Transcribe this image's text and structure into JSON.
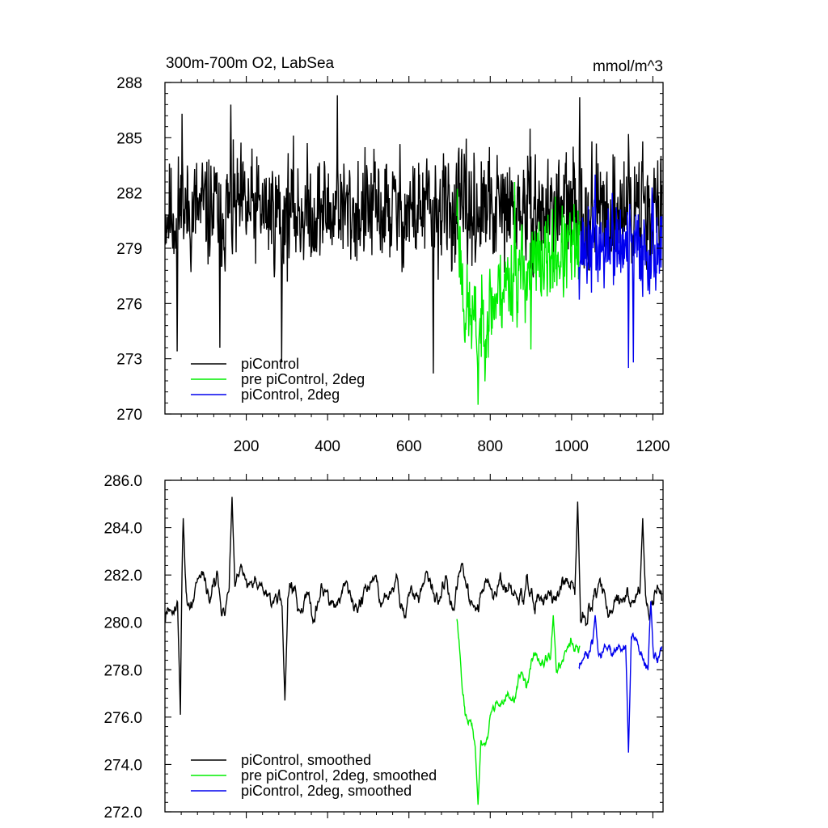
{
  "chart_data": [
    {
      "type": "line",
      "title": "300m-700m O2, LabSea",
      "units_label": "mmol/m^3",
      "xlim": [
        0,
        1225
      ],
      "ylim": [
        270,
        288
      ],
      "xticks": [
        200,
        400,
        600,
        800,
        1000,
        1200
      ],
      "xtick_labels": [
        "200",
        "400",
        "600",
        "800",
        "1000",
        "1200"
      ],
      "xminor_step": 40,
      "yticks": [
        270,
        273,
        276,
        279,
        282,
        285,
        288
      ],
      "ytick_labels": [
        "270",
        "273",
        "276",
        "279",
        "282",
        "285",
        "288"
      ],
      "yminor_step": 0.6,
      "legend_position": "bottom-left",
      "series": [
        {
          "name": "piControl",
          "color": "#000000",
          "x_start": 1,
          "x_end": 1222,
          "mean": 281.0,
          "amp": 2.6,
          "seed": 11,
          "spikes": [
            [
              30,
              273.4
            ],
            [
              42,
              286.3
            ],
            [
              135,
              273.6
            ],
            [
              162,
              286.8
            ],
            [
              287,
              272.8
            ],
            [
              424,
              287.3
            ],
            [
              660,
              272.2
            ],
            [
              1020,
              287.2
            ],
            [
              1140,
              285.2
            ],
            [
              1175,
              284.8
            ]
          ]
        },
        {
          "name": "pre piControl, 2deg",
          "color": "#00ee00",
          "x_start": 718,
          "x_end": 1020,
          "mean": 277.6,
          "amp": 2.1,
          "seed": 23,
          "trend": [
            [
              718,
              281.5
            ],
            [
              735,
              276.0
            ],
            [
              770,
              274.5
            ],
            [
              830,
              277.0
            ],
            [
              900,
              278.0
            ],
            [
              1020,
              279.0
            ]
          ],
          "spikes": [
            [
              770,
              270.5
            ],
            [
              860,
              282.6
            ],
            [
              900,
              273.5
            ],
            [
              960,
              281.8
            ]
          ]
        },
        {
          "name": "piControl, 2deg",
          "color": "#0000ee",
          "x_start": 1018,
          "x_end": 1222,
          "mean": 279.0,
          "amp": 2.0,
          "seed": 37,
          "spikes": [
            [
              1058,
              283.0
            ],
            [
              1100,
              282.0
            ],
            [
              1140,
              272.5
            ],
            [
              1152,
              272.8
            ],
            [
              1198,
              282.3
            ]
          ]
        }
      ]
    },
    {
      "type": "line",
      "title": "",
      "xlim": [
        0,
        1225
      ],
      "ylim": [
        272.0,
        286.0
      ],
      "xticks": [
        200,
        400,
        600,
        800,
        1000,
        1200
      ],
      "xtick_labels": [],
      "xminor_step": 40,
      "yticks": [
        272.0,
        274.0,
        276.0,
        278.0,
        280.0,
        282.0,
        284.0,
        286.0
      ],
      "ytick_labels": [
        "272.0",
        "274.0",
        "276.0",
        "278.0",
        "280.0",
        "282.0",
        "284.0",
        "286.0"
      ],
      "yminor_step": 0.4,
      "legend_position": "bottom-left",
      "series": [
        {
          "name": "piControl, smoothed",
          "color": "#000000",
          "x_start": 1,
          "x_end": 1222,
          "mean": 281.1,
          "amp": 1.3,
          "seed": 11,
          "smooth": 9,
          "spikes": [
            [
              38,
              276.1
            ],
            [
              45,
              284.4
            ],
            [
              165,
              285.3
            ],
            [
              295,
              276.7
            ],
            [
              1015,
              285.1
            ],
            [
              1175,
              284.4
            ]
          ]
        },
        {
          "name": "pre piControl, 2deg, smoothed",
          "color": "#00ee00",
          "x_start": 718,
          "x_end": 1020,
          "mean": 277.6,
          "amp": 1.0,
          "seed": 23,
          "smooth": 9,
          "trend": [
            [
              718,
              280.5
            ],
            [
              738,
              276.5
            ],
            [
              765,
              274.5
            ],
            [
              800,
              276.3
            ],
            [
              870,
              277.5
            ],
            [
              930,
              278.3
            ],
            [
              1020,
              278.6
            ]
          ],
          "spikes": [
            [
              770,
              272.3
            ],
            [
              955,
              280.3
            ]
          ]
        },
        {
          "name": "piControl, 2deg, smoothed",
          "color": "#0000ee",
          "x_start": 1018,
          "x_end": 1222,
          "mean": 278.8,
          "amp": 1.0,
          "seed": 37,
          "smooth": 9,
          "spikes": [
            [
              1058,
              280.3
            ],
            [
              1140,
              274.5
            ],
            [
              1195,
              280.9
            ]
          ]
        }
      ]
    }
  ]
}
